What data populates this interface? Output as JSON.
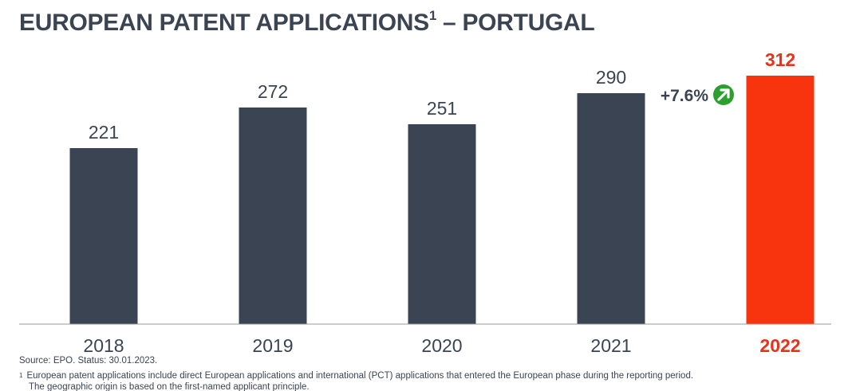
{
  "title": {
    "text": "EUROPEAN PATENT APPLICATIONS",
    "superscript": "1",
    "suffix": " – PORTUGAL"
  },
  "colors": {
    "bar_default": "#3b4452",
    "bar_highlight": "#f8340f",
    "label_default": "#3b4452",
    "label_highlight": "#e8321b",
    "growth_icon": "#2ca02c",
    "axis": "#9a9a9a"
  },
  "chart_data": {
    "type": "bar",
    "categories": [
      "2018",
      "2019",
      "2020",
      "2021",
      "2022"
    ],
    "values": [
      221,
      272,
      251,
      290,
      312
    ],
    "highlight_index": 4,
    "ylim": [
      0,
      330
    ],
    "grid": false,
    "annotation": {
      "text": "+7.6%",
      "icon": "arrow-up-right-icon",
      "between": [
        "2021",
        "2022"
      ]
    }
  },
  "footer": {
    "source": "Source: EPO. Status: 30.01.2023.",
    "footnote_marker": "1",
    "footnote_line1": "European patent applications include direct European applications and international (PCT) applications that entered the European phase during the reporting period.",
    "footnote_line2": "The geographic origin is based on the first-named applicant principle."
  }
}
